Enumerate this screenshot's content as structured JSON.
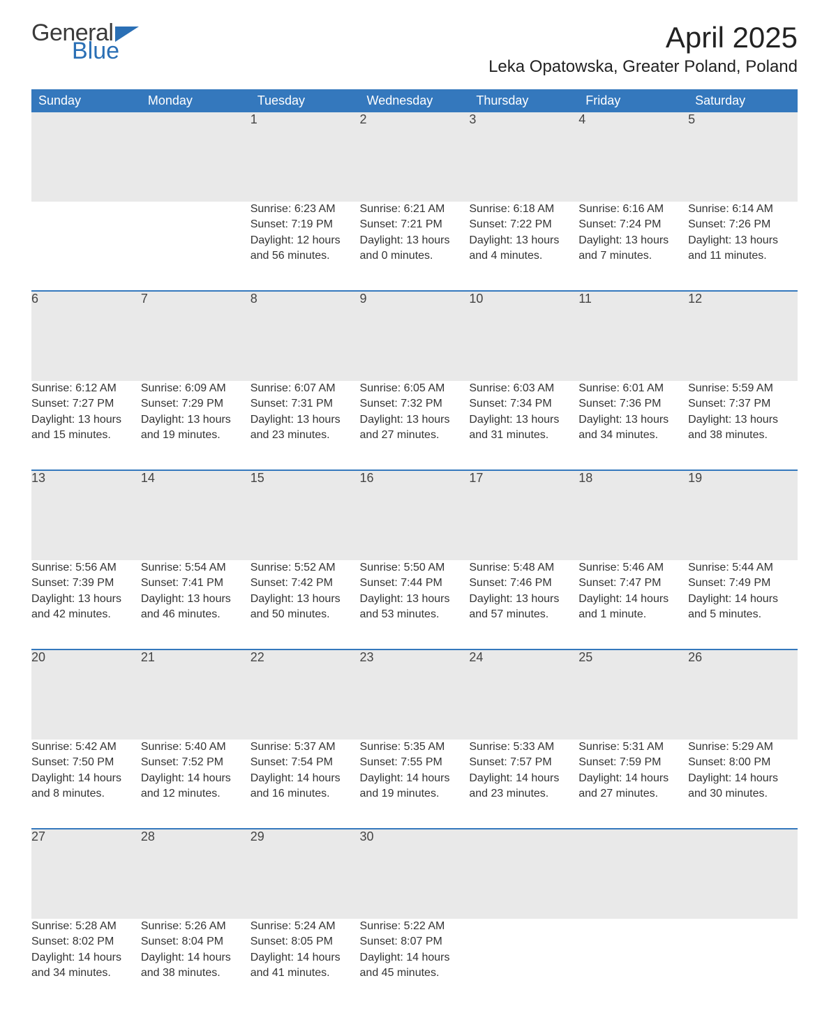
{
  "brand": {
    "line1": "General",
    "line2": "Blue",
    "text_color": "#3a3a3a",
    "accent_color": "#2a6fb5"
  },
  "title": "April 2025",
  "location": "Leka Opatowska, Greater Poland, Poland",
  "colors": {
    "header_bg": "#3478bd",
    "header_fg": "#ffffff",
    "daynum_bg": "#e9e9e9",
    "week_border": "#3478bd",
    "text": "#333333",
    "bg": "#ffffff"
  },
  "day_headers": [
    "Sunday",
    "Monday",
    "Tuesday",
    "Wednesday",
    "Thursday",
    "Friday",
    "Saturday"
  ],
  "weeks": [
    {
      "sep": false,
      "cells": [
        {
          "n": "",
          "lines": [
            "",
            "",
            "",
            ""
          ]
        },
        {
          "n": "",
          "lines": [
            "",
            "",
            "",
            ""
          ]
        },
        {
          "n": "1",
          "lines": [
            "Sunrise: 6:23 AM",
            "Sunset: 7:19 PM",
            "Daylight: 12 hours",
            "and 56 minutes."
          ]
        },
        {
          "n": "2",
          "lines": [
            "Sunrise: 6:21 AM",
            "Sunset: 7:21 PM",
            "Daylight: 13 hours",
            "and 0 minutes."
          ]
        },
        {
          "n": "3",
          "lines": [
            "Sunrise: 6:18 AM",
            "Sunset: 7:22 PM",
            "Daylight: 13 hours",
            "and 4 minutes."
          ]
        },
        {
          "n": "4",
          "lines": [
            "Sunrise: 6:16 AM",
            "Sunset: 7:24 PM",
            "Daylight: 13 hours",
            "and 7 minutes."
          ]
        },
        {
          "n": "5",
          "lines": [
            "Sunrise: 6:14 AM",
            "Sunset: 7:26 PM",
            "Daylight: 13 hours",
            "and 11 minutes."
          ]
        }
      ]
    },
    {
      "sep": true,
      "cells": [
        {
          "n": "6",
          "lines": [
            "Sunrise: 6:12 AM",
            "Sunset: 7:27 PM",
            "Daylight: 13 hours",
            "and 15 minutes."
          ]
        },
        {
          "n": "7",
          "lines": [
            "Sunrise: 6:09 AM",
            "Sunset: 7:29 PM",
            "Daylight: 13 hours",
            "and 19 minutes."
          ]
        },
        {
          "n": "8",
          "lines": [
            "Sunrise: 6:07 AM",
            "Sunset: 7:31 PM",
            "Daylight: 13 hours",
            "and 23 minutes."
          ]
        },
        {
          "n": "9",
          "lines": [
            "Sunrise: 6:05 AM",
            "Sunset: 7:32 PM",
            "Daylight: 13 hours",
            "and 27 minutes."
          ]
        },
        {
          "n": "10",
          "lines": [
            "Sunrise: 6:03 AM",
            "Sunset: 7:34 PM",
            "Daylight: 13 hours",
            "and 31 minutes."
          ]
        },
        {
          "n": "11",
          "lines": [
            "Sunrise: 6:01 AM",
            "Sunset: 7:36 PM",
            "Daylight: 13 hours",
            "and 34 minutes."
          ]
        },
        {
          "n": "12",
          "lines": [
            "Sunrise: 5:59 AM",
            "Sunset: 7:37 PM",
            "Daylight: 13 hours",
            "and 38 minutes."
          ]
        }
      ]
    },
    {
      "sep": true,
      "cells": [
        {
          "n": "13",
          "lines": [
            "Sunrise: 5:56 AM",
            "Sunset: 7:39 PM",
            "Daylight: 13 hours",
            "and 42 minutes."
          ]
        },
        {
          "n": "14",
          "lines": [
            "Sunrise: 5:54 AM",
            "Sunset: 7:41 PM",
            "Daylight: 13 hours",
            "and 46 minutes."
          ]
        },
        {
          "n": "15",
          "lines": [
            "Sunrise: 5:52 AM",
            "Sunset: 7:42 PM",
            "Daylight: 13 hours",
            "and 50 minutes."
          ]
        },
        {
          "n": "16",
          "lines": [
            "Sunrise: 5:50 AM",
            "Sunset: 7:44 PM",
            "Daylight: 13 hours",
            "and 53 minutes."
          ]
        },
        {
          "n": "17",
          "lines": [
            "Sunrise: 5:48 AM",
            "Sunset: 7:46 PM",
            "Daylight: 13 hours",
            "and 57 minutes."
          ]
        },
        {
          "n": "18",
          "lines": [
            "Sunrise: 5:46 AM",
            "Sunset: 7:47 PM",
            "Daylight: 14 hours",
            "and 1 minute."
          ]
        },
        {
          "n": "19",
          "lines": [
            "Sunrise: 5:44 AM",
            "Sunset: 7:49 PM",
            "Daylight: 14 hours",
            "and 5 minutes."
          ]
        }
      ]
    },
    {
      "sep": true,
      "cells": [
        {
          "n": "20",
          "lines": [
            "Sunrise: 5:42 AM",
            "Sunset: 7:50 PM",
            "Daylight: 14 hours",
            "and 8 minutes."
          ]
        },
        {
          "n": "21",
          "lines": [
            "Sunrise: 5:40 AM",
            "Sunset: 7:52 PM",
            "Daylight: 14 hours",
            "and 12 minutes."
          ]
        },
        {
          "n": "22",
          "lines": [
            "Sunrise: 5:37 AM",
            "Sunset: 7:54 PM",
            "Daylight: 14 hours",
            "and 16 minutes."
          ]
        },
        {
          "n": "23",
          "lines": [
            "Sunrise: 5:35 AM",
            "Sunset: 7:55 PM",
            "Daylight: 14 hours",
            "and 19 minutes."
          ]
        },
        {
          "n": "24",
          "lines": [
            "Sunrise: 5:33 AM",
            "Sunset: 7:57 PM",
            "Daylight: 14 hours",
            "and 23 minutes."
          ]
        },
        {
          "n": "25",
          "lines": [
            "Sunrise: 5:31 AM",
            "Sunset: 7:59 PM",
            "Daylight: 14 hours",
            "and 27 minutes."
          ]
        },
        {
          "n": "26",
          "lines": [
            "Sunrise: 5:29 AM",
            "Sunset: 8:00 PM",
            "Daylight: 14 hours",
            "and 30 minutes."
          ]
        }
      ]
    },
    {
      "sep": true,
      "cells": [
        {
          "n": "27",
          "lines": [
            "Sunrise: 5:28 AM",
            "Sunset: 8:02 PM",
            "Daylight: 14 hours",
            "and 34 minutes."
          ]
        },
        {
          "n": "28",
          "lines": [
            "Sunrise: 5:26 AM",
            "Sunset: 8:04 PM",
            "Daylight: 14 hours",
            "and 38 minutes."
          ]
        },
        {
          "n": "29",
          "lines": [
            "Sunrise: 5:24 AM",
            "Sunset: 8:05 PM",
            "Daylight: 14 hours",
            "and 41 minutes."
          ]
        },
        {
          "n": "30",
          "lines": [
            "Sunrise: 5:22 AM",
            "Sunset: 8:07 PM",
            "Daylight: 14 hours",
            "and 45 minutes."
          ]
        },
        {
          "n": "",
          "lines": [
            "",
            "",
            "",
            ""
          ]
        },
        {
          "n": "",
          "lines": [
            "",
            "",
            "",
            ""
          ]
        },
        {
          "n": "",
          "lines": [
            "",
            "",
            "",
            ""
          ]
        }
      ]
    }
  ]
}
